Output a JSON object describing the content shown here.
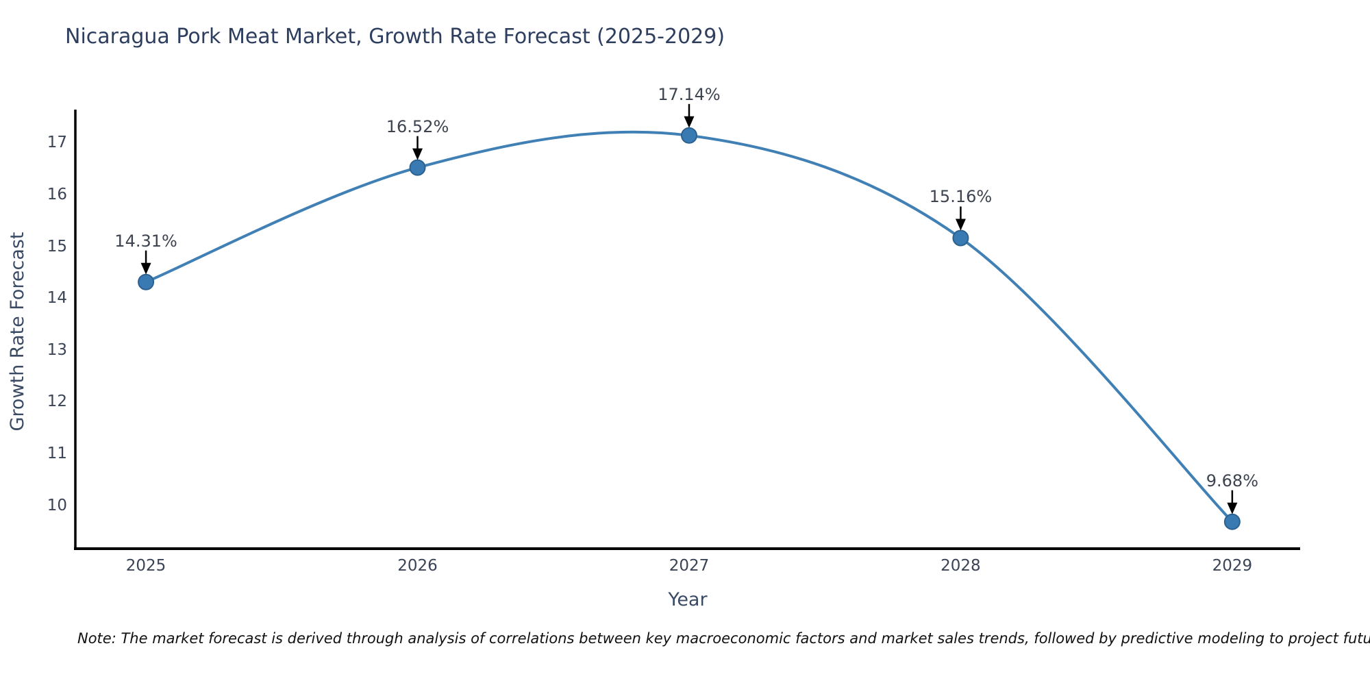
{
  "title": "Nicaragua Pork Meat Market, Growth Rate Forecast (2025-2029)",
  "note": "Note: The market forecast is derived through analysis of correlations between key macroeconomic factors and market sales trends, followed by predictive modeling to project future sales",
  "chart_data": {
    "type": "line",
    "title": "Nicaragua Pork Meat Market, Growth Rate Forecast (2025-2029)",
    "xlabel": "Year",
    "ylabel": "Growth Rate Forecast",
    "x": [
      2025,
      2026,
      2027,
      2028,
      2029
    ],
    "values": [
      14.31,
      16.52,
      17.14,
      15.16,
      9.68
    ],
    "point_labels": [
      "14.31%",
      "16.52%",
      "17.14%",
      "15.16%",
      "9.68%"
    ],
    "x_tick_labels": [
      "2025",
      "2026",
      "2027",
      "2028",
      "2029"
    ],
    "y_ticks": [
      10,
      11,
      12,
      13,
      14,
      15,
      16,
      17
    ],
    "xlim": [
      2024.74,
      2029.25
    ],
    "ylim": [
      9.16,
      17.64
    ],
    "grid": false,
    "legend": null,
    "curve_style": "smooth-spline",
    "line_color": "#4080b5",
    "marker_color": "#3a7ab3",
    "marker_edge_color": "#2c618f",
    "axis_color": "#000000",
    "annotation_arrow_color": "#000000"
  }
}
